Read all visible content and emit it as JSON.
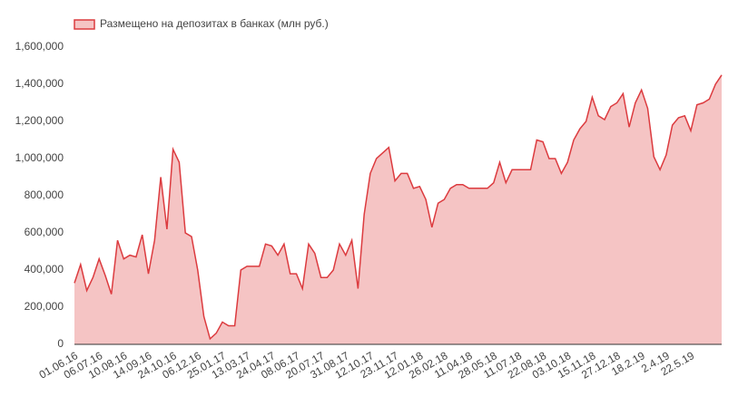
{
  "chart_data": {
    "type": "area",
    "series": [
      {
        "name": "Размещено на депозитах в банках (млн руб.)",
        "color": "#dc3b3f",
        "fill": "#f5c4c4",
        "values": [
          330000,
          430000,
          290000,
          360000,
          460000,
          370000,
          270000,
          560000,
          460000,
          480000,
          470000,
          590000,
          380000,
          560000,
          900000,
          620000,
          1050000,
          980000,
          600000,
          580000,
          400000,
          150000,
          30000,
          60000,
          120000,
          100000,
          100000,
          400000,
          420000,
          420000,
          420000,
          540000,
          530000,
          480000,
          540000,
          380000,
          380000,
          300000,
          540000,
          490000,
          360000,
          360000,
          400000,
          540000,
          480000,
          560000,
          300000,
          700000,
          920000,
          1000000,
          1030000,
          1060000,
          880000,
          920000,
          920000,
          840000,
          850000,
          780000,
          630000,
          760000,
          780000,
          840000,
          860000,
          860000,
          840000,
          840000,
          840000,
          840000,
          870000,
          980000,
          870000,
          940000,
          940000,
          940000,
          940000,
          1100000,
          1090000,
          1000000,
          1000000,
          920000,
          980000,
          1100000,
          1160000,
          1200000,
          1330000,
          1230000,
          1210000,
          1280000,
          1300000,
          1350000,
          1170000,
          1300000,
          1370000,
          1270000,
          1010000,
          940000,
          1020000,
          1180000,
          1220000,
          1230000,
          1150000,
          1290000,
          1300000,
          1320000,
          1400000,
          1450000
        ]
      }
    ],
    "categories": [
      "01.06.16",
      null,
      null,
      null,
      "06.07.16",
      null,
      null,
      null,
      "10.08.16",
      null,
      null,
      null,
      "14.09.16",
      null,
      null,
      null,
      "24.10.16",
      null,
      null,
      null,
      "06.12.16",
      null,
      null,
      null,
      "25.01.17",
      null,
      null,
      null,
      "13.03.17",
      null,
      null,
      null,
      "24.04.17",
      null,
      null,
      null,
      "08.06.17",
      null,
      null,
      null,
      "20.07.17",
      null,
      null,
      null,
      "31.08.17",
      null,
      null,
      null,
      "12.10.17",
      null,
      null,
      null,
      "23.11.17",
      null,
      null,
      null,
      "12.01.18",
      null,
      null,
      null,
      "26.02.18",
      null,
      null,
      null,
      "11.04.18",
      null,
      null,
      null,
      "28.05.18",
      null,
      null,
      null,
      "11.07.18",
      null,
      null,
      null,
      "22.08.18",
      null,
      null,
      null,
      "03.10.18",
      null,
      null,
      null,
      "15.11.18",
      null,
      null,
      null,
      "27.12.18",
      null,
      null,
      null,
      "18.2.19",
      null,
      null,
      null,
      "2.4.19",
      null,
      null,
      null,
      "22.5.19",
      null,
      null,
      null,
      null,
      null
    ],
    "ylim": [
      0,
      1600000
    ],
    "yticks": [
      0,
      {
        "value": 200000,
        "label": "200,000"
      },
      {
        "value": 400000,
        "label": "400,000"
      },
      {
        "value": 600000,
        "label": "600,000"
      },
      {
        "value": 800000,
        "label": "800,000"
      },
      {
        "value": 1000000,
        "label": "1,000,000"
      },
      {
        "value": 1200000,
        "label": "1,200,000"
      },
      {
        "value": 1400000,
        "label": "1,400,000"
      },
      {
        "value": 1600000,
        "label": "1,600,000"
      }
    ],
    "legend": "top-left",
    "grid": false
  }
}
